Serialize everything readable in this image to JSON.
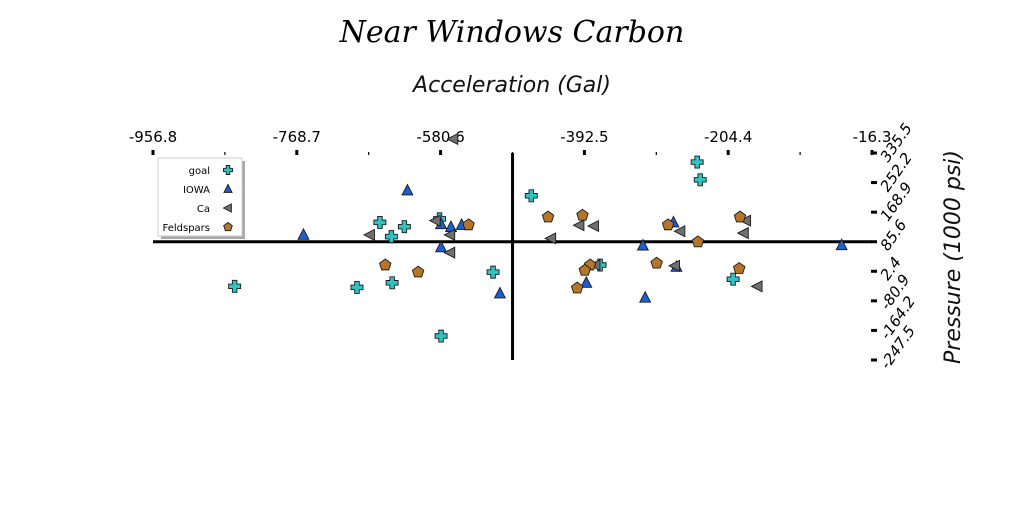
{
  "chart_data": {
    "type": "scatter",
    "title": "Near Windows Carbon",
    "xlabel": "Acceleration (Gal)",
    "ylabel": "Pressure (1000 psi)",
    "xlim": [
      -956.8,
      -16.3
    ],
    "ylim": [
      -247.5,
      335.5
    ],
    "x_ticks": [
      "-956.8",
      "-768.7",
      "-580.6",
      "-392.5",
      "-204.4",
      "-16.3"
    ],
    "y_ticks": [
      "335.5",
      "252.2",
      "168.9",
      "85.6",
      "2.4",
      "-80.9",
      "-164.2",
      "-247.5"
    ],
    "legend_position": "top-left",
    "axes_cross": [
      -486.5,
      85.6
    ],
    "series": [
      {
        "name": "goal",
        "marker": "plus",
        "color": "#2ec4c4",
        "points": [
          [
            -850,
            -40
          ],
          [
            -690,
            -43
          ],
          [
            -660,
            140
          ],
          [
            -645,
            100
          ],
          [
            -628,
            128
          ],
          [
            -582,
            150
          ],
          [
            -462,
            215
          ],
          [
            -372,
            20
          ],
          [
            -245,
            310
          ],
          [
            -198,
            -20
          ],
          [
            -644,
            -30
          ],
          [
            -512,
            0
          ],
          [
            -580,
            -180
          ],
          [
            -241,
            260
          ]
        ]
      },
      {
        "name": "IOWA",
        "marker": "triangle",
        "color": "#1e5fcf",
        "points": [
          [
            -760,
            105
          ],
          [
            -624,
            230
          ],
          [
            -580,
            135
          ],
          [
            -567,
            127
          ],
          [
            -553,
            133
          ],
          [
            -503,
            -60
          ],
          [
            -390,
            -30
          ],
          [
            -313,
            -72
          ],
          [
            -316,
            75
          ],
          [
            -276,
            140
          ],
          [
            -56,
            76
          ],
          [
            -272,
            15
          ],
          [
            -580,
            70
          ]
        ]
      },
      {
        "name": "Ca",
        "marker": "triangle-left",
        "color": "#707070",
        "points": [
          [
            -564,
            375
          ],
          [
            -587,
            145
          ],
          [
            -673,
            105
          ],
          [
            -568,
            55
          ],
          [
            -568,
            105
          ],
          [
            -436,
            95
          ],
          [
            -399,
            132
          ],
          [
            -378,
            20
          ],
          [
            -267,
            115
          ],
          [
            -274,
            18
          ],
          [
            -181,
            145
          ],
          [
            -166,
            -40
          ],
          [
            -184,
            110
          ],
          [
            -380,
            130
          ]
        ]
      },
      {
        "name": "Feldspars",
        "marker": "pentagon",
        "color": "#b5762a",
        "points": [
          [
            -544,
            133
          ],
          [
            -653,
            20
          ],
          [
            -440,
            155
          ],
          [
            -395,
            160
          ],
          [
            -385,
            20
          ],
          [
            -392,
            5
          ],
          [
            -402,
            -45
          ],
          [
            -298,
            25
          ],
          [
            -283,
            133
          ],
          [
            -244,
            85
          ],
          [
            -189,
            155
          ],
          [
            -190,
            10
          ],
          [
            -610,
            0
          ]
        ]
      }
    ]
  }
}
